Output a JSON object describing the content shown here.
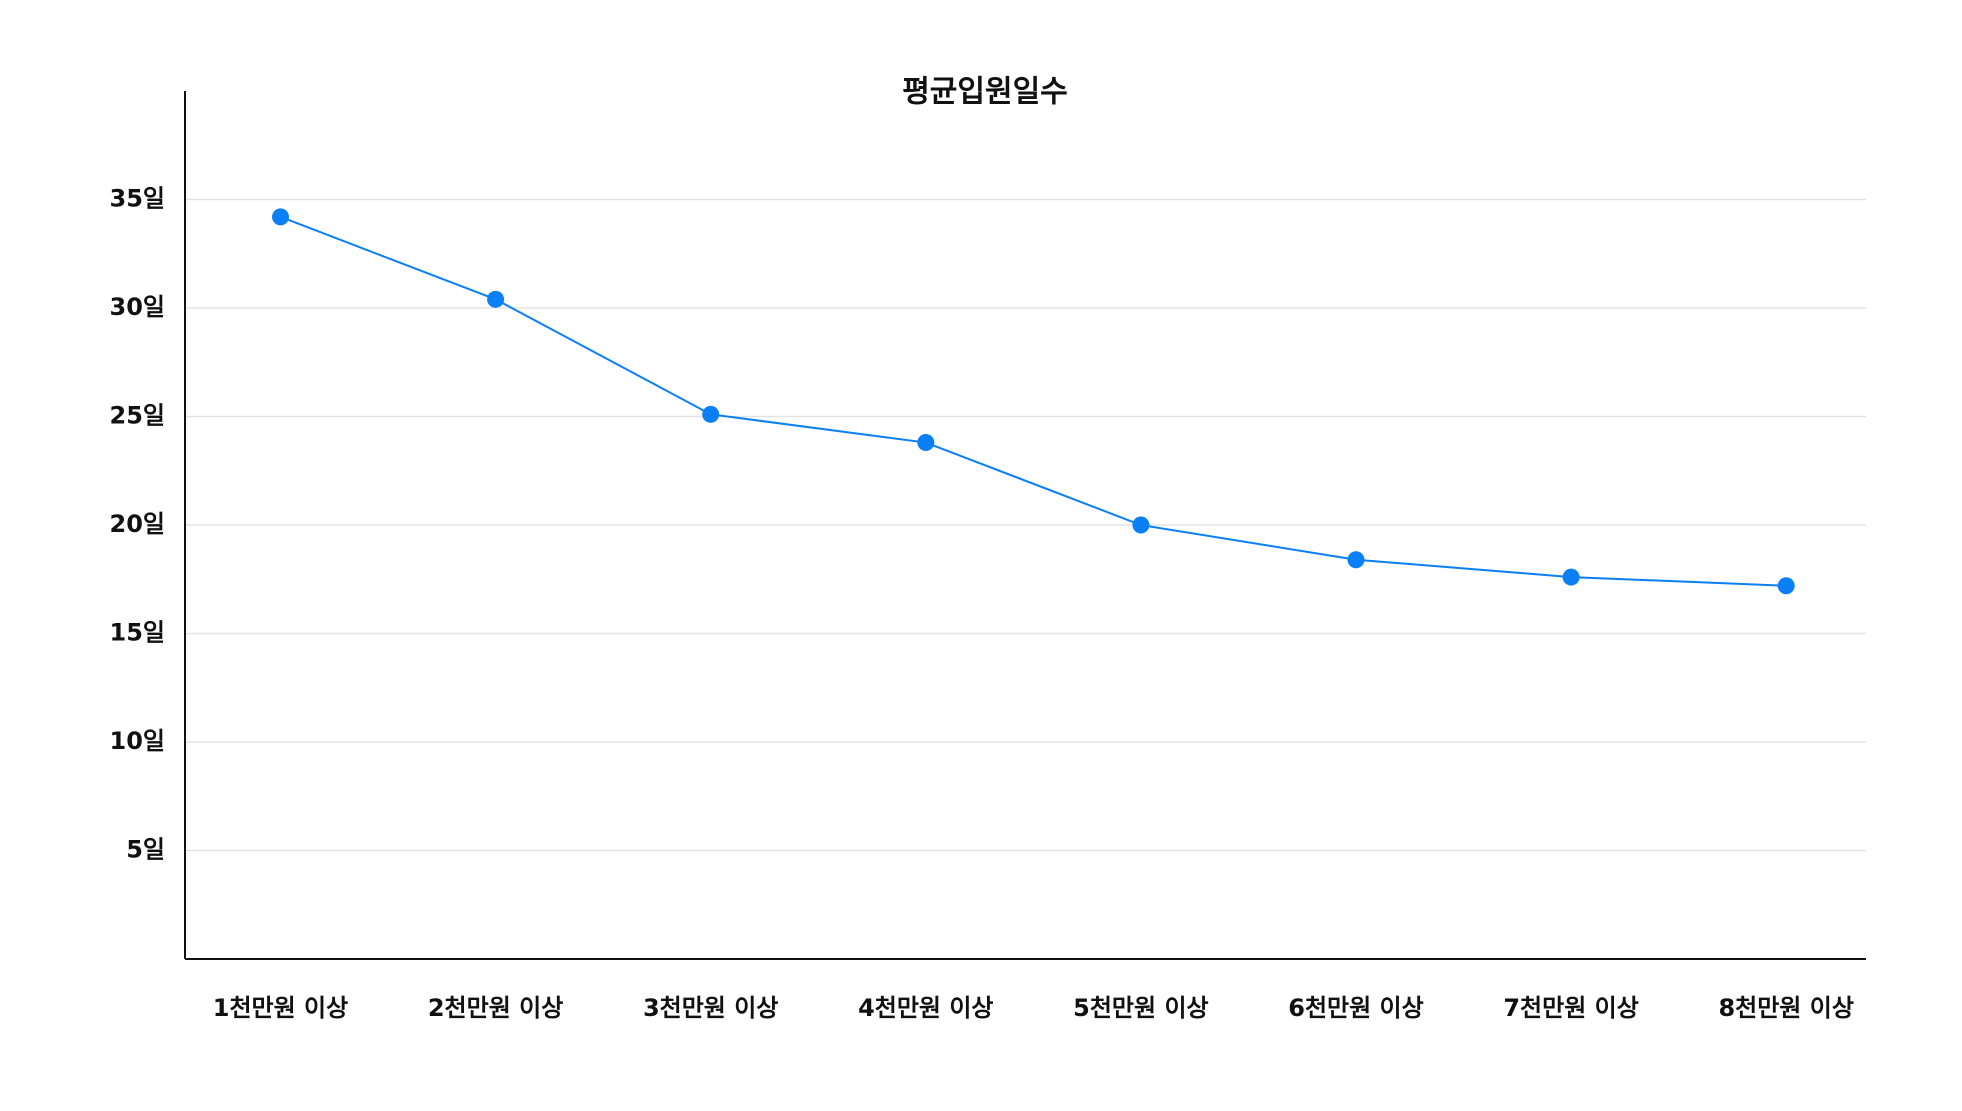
{
  "chart_data": {
    "type": "line",
    "title": "평균입원일수",
    "categories": [
      "1천만원 이상",
      "2천만원 이상",
      "3천만원 이상",
      "4천만원 이상",
      "5천만원 이상",
      "6천만원 이상",
      "7천만원 이상",
      "8천만원 이상"
    ],
    "series": [
      {
        "name": "평균입원일수",
        "color": "#0b7ff5",
        "values": [
          34.2,
          30.4,
          25.1,
          23.8,
          20.0,
          18.4,
          17.6,
          17.2
        ]
      }
    ],
    "ylim": [
      0,
      40
    ],
    "yticks": [
      {
        "value": 5,
        "label": "5일"
      },
      {
        "value": 10,
        "label": "10일"
      },
      {
        "value": 15,
        "label": "15일"
      },
      {
        "value": 20,
        "label": "20일"
      },
      {
        "value": 25,
        "label": "25일"
      },
      {
        "value": 30,
        "label": "30일"
      },
      {
        "value": 35,
        "label": "35일"
      }
    ],
    "grid": true
  }
}
